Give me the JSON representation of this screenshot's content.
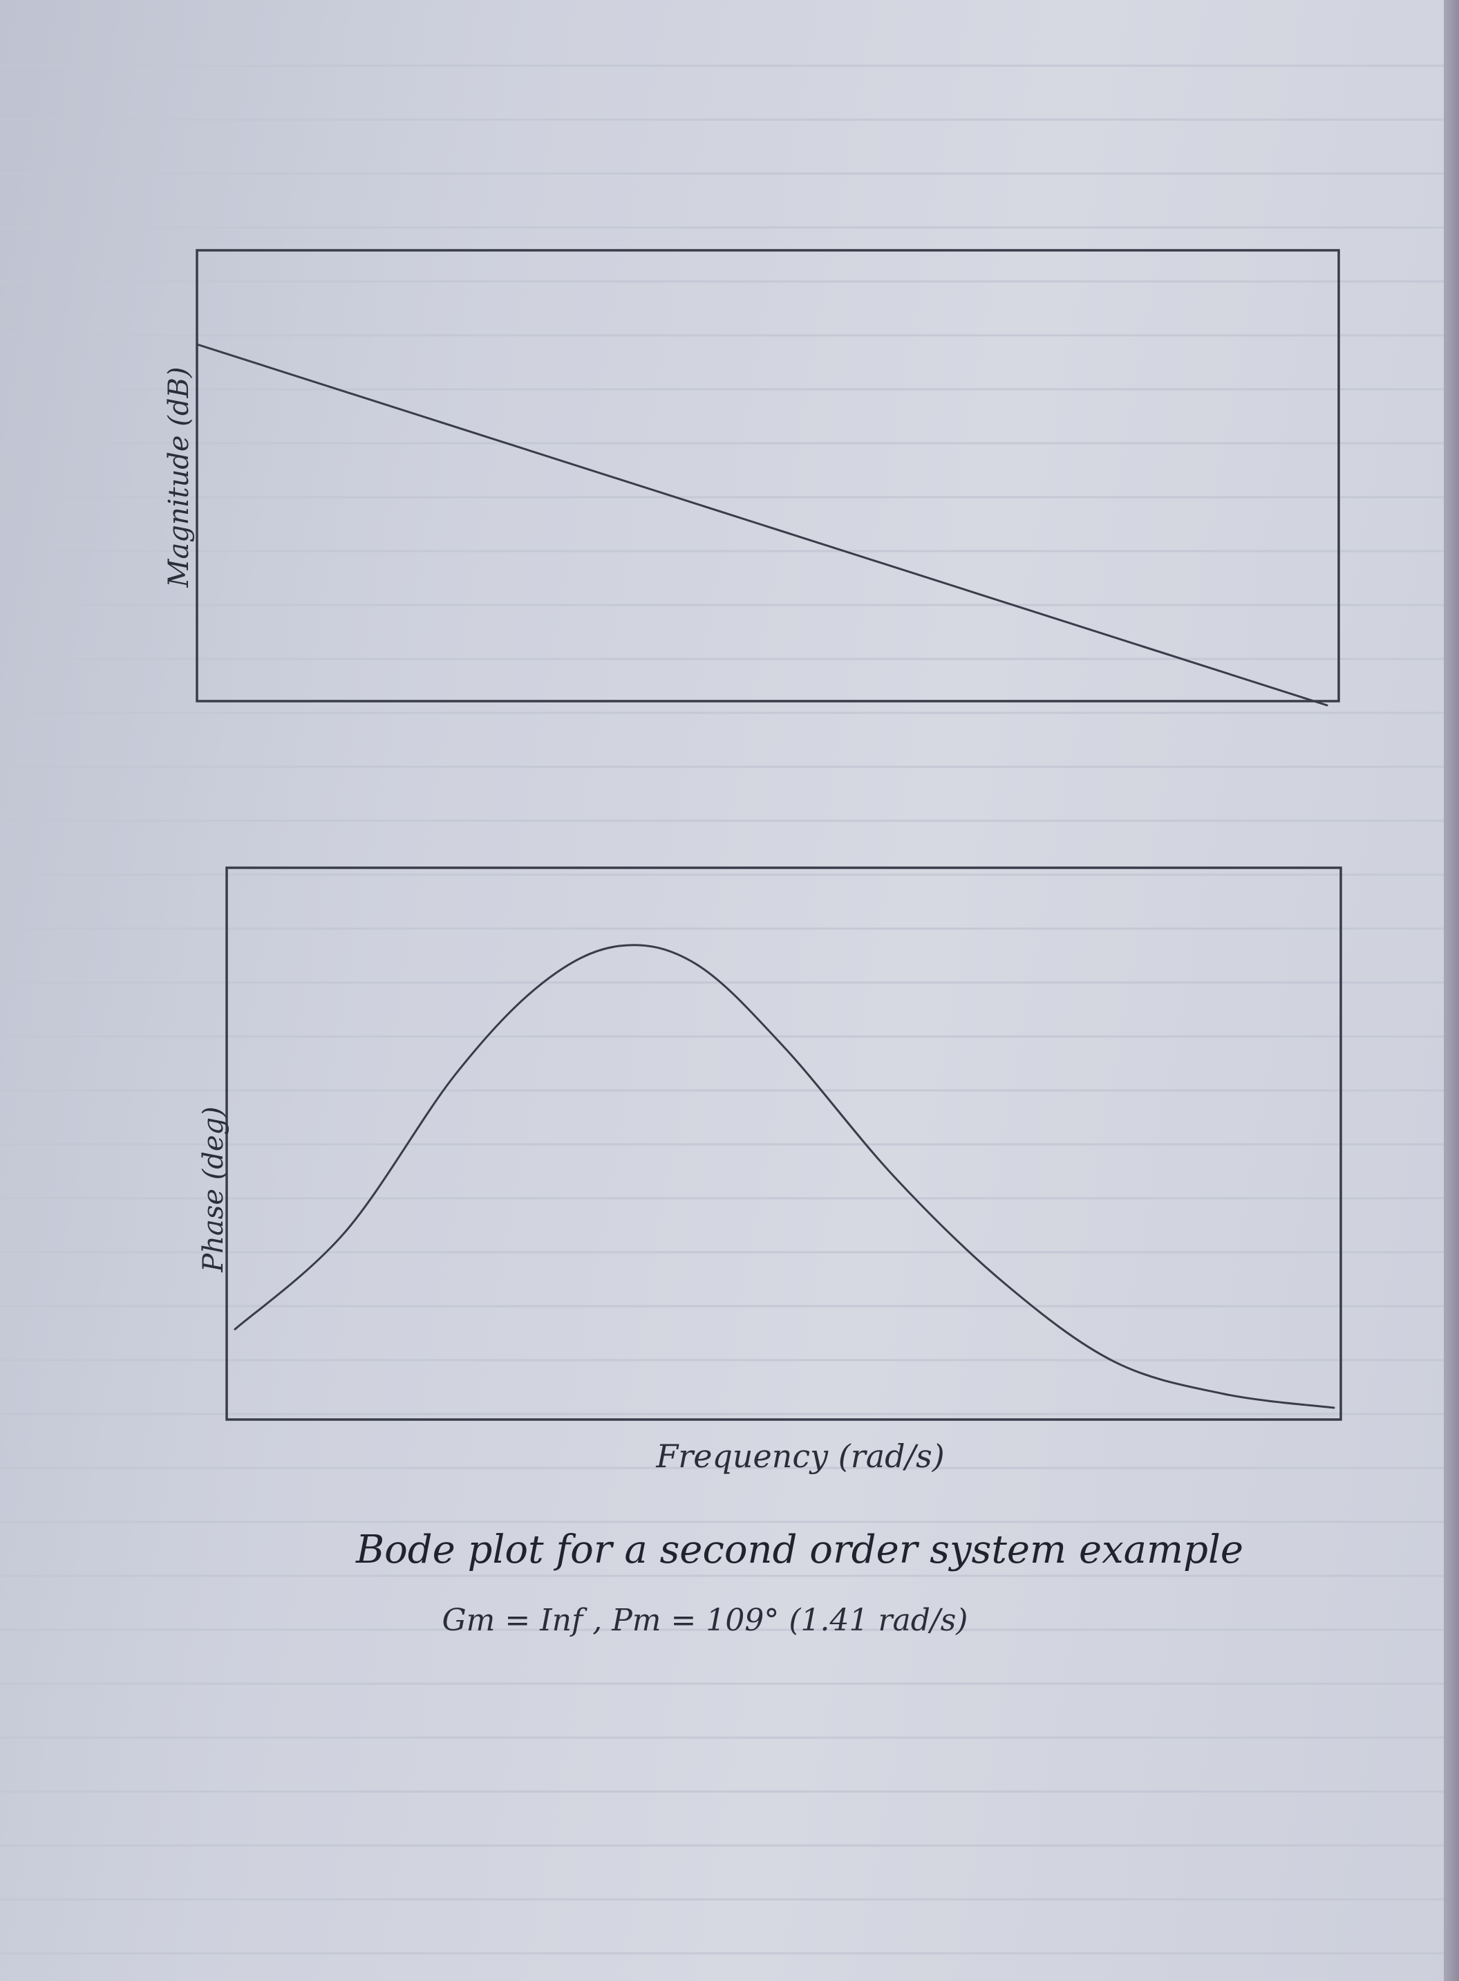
{
  "chart_data": [
    {
      "type": "line",
      "ylabel": "Magnitude (dB)",
      "xlabel": "",
      "grid": false,
      "series": [
        {
          "x": [
            0,
            1
          ],
          "values": [
            1,
            0
          ]
        }
      ]
    },
    {
      "type": "line",
      "ylabel": "Phase (deg)",
      "xlabel": "Frequency (rad/s)",
      "grid": false,
      "series": [
        {
          "x": [
            0,
            0.1,
            0.2,
            0.28,
            0.35,
            0.42,
            0.5,
            0.6,
            0.7,
            0.8,
            0.9,
            1.0
          ],
          "values": [
            0.17,
            0.38,
            0.72,
            0.92,
            1.0,
            0.96,
            0.78,
            0.5,
            0.27,
            0.1,
            0.03,
            0.0
          ]
        }
      ]
    }
  ],
  "caption": {
    "line1": "Bode plot for a second order system example",
    "line2": "Gm = Inf , Pm = 109° (1.41 rad/s)"
  },
  "colors": {
    "pencil": "#3a3c4a",
    "paper": "#d2d5e0"
  }
}
